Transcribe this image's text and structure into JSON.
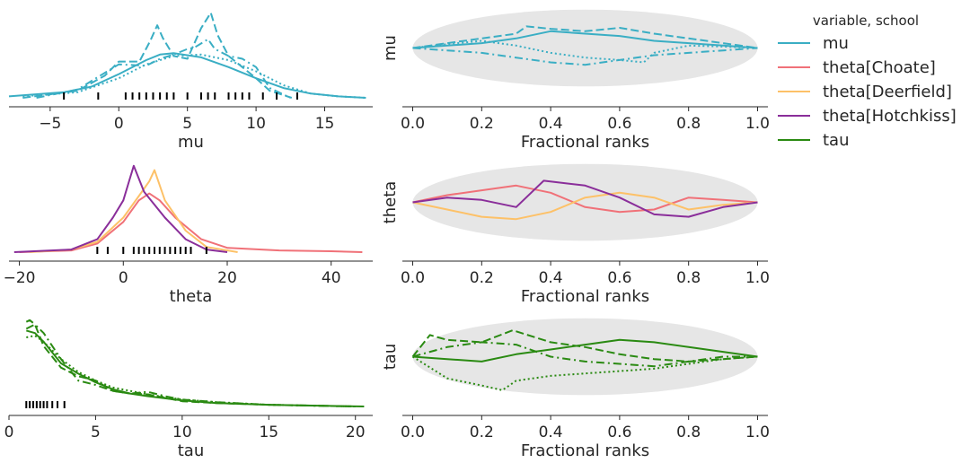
{
  "colors": {
    "mu": "#3aaec4",
    "theta_choate": "#f07178",
    "theta_deerfield": "#fdc168",
    "theta_hotchkiss": "#8a2e9a",
    "tau": "#2a8a12",
    "band": "#e6e6e6",
    "axis": "#262626"
  },
  "legend": {
    "title": "variable, school",
    "placement": "right",
    "entries": [
      {
        "label": "mu",
        "color_key": "mu"
      },
      {
        "label": "theta[Choate]",
        "color_key": "theta_choate"
      },
      {
        "label": "theta[Deerfield]",
        "color_key": "theta_deerfield"
      },
      {
        "label": "theta[Hotchkiss]",
        "color_key": "theta_hotchkiss"
      },
      {
        "label": "tau",
        "color_key": "tau"
      }
    ]
  },
  "chart_data": [
    {
      "type": "line",
      "subtype": "kde",
      "variable": "mu",
      "xlabel": "mu",
      "ylabel": "",
      "xlim": [
        -8,
        18.5
      ],
      "xticks": [
        -5,
        0,
        5,
        10,
        15
      ],
      "color_key": "mu",
      "series": [
        {
          "style": "solid",
          "x": [
            -8,
            -4,
            -2,
            0,
            2,
            3,
            4,
            6,
            8,
            10,
            12,
            14,
            16,
            18
          ],
          "y": [
            0.01,
            0.04,
            0.08,
            0.17,
            0.27,
            0.31,
            0.32,
            0.29,
            0.22,
            0.14,
            0.07,
            0.03,
            0.01,
            0.0
          ]
        },
        {
          "style": "dashed",
          "x": [
            -7,
            -3,
            -1,
            0,
            1.5,
            2.3,
            2.8,
            3.2,
            4,
            5,
            6,
            6.7,
            7.2,
            8,
            9,
            10,
            11,
            12.6
          ],
          "y": [
            0.0,
            0.05,
            0.16,
            0.26,
            0.26,
            0.41,
            0.52,
            0.43,
            0.3,
            0.28,
            0.5,
            0.61,
            0.45,
            0.3,
            0.22,
            0.14,
            0.05,
            0.0
          ]
        },
        {
          "style": "dashdot",
          "x": [
            -6,
            -3,
            -1,
            0,
            2,
            3,
            4,
            5,
            5.5,
            6.5,
            7,
            8,
            9,
            10,
            11,
            12.5
          ],
          "y": [
            0.0,
            0.06,
            0.18,
            0.24,
            0.23,
            0.28,
            0.31,
            0.35,
            0.36,
            0.42,
            0.35,
            0.3,
            0.28,
            0.22,
            0.07,
            0.0
          ]
        },
        {
          "style": "dotted",
          "x": [
            -7,
            -3,
            0,
            2,
            4,
            6,
            8,
            10,
            12,
            14,
            16,
            18
          ],
          "y": [
            0.01,
            0.04,
            0.14,
            0.24,
            0.3,
            0.31,
            0.27,
            0.19,
            0.09,
            0.03,
            0.01,
            0.0
          ]
        }
      ],
      "rug": [
        -4,
        -1.5,
        0.5,
        1,
        1.5,
        2,
        2.5,
        3,
        3.5,
        4,
        5,
        6,
        6.5,
        7,
        8,
        8.5,
        9,
        9.5,
        10.5,
        11.5,
        13
      ]
    },
    {
      "type": "line",
      "subtype": "rank",
      "ylabel": "mu",
      "xlabel": "Fractional ranks",
      "xlim": [
        -0.03,
        1.03
      ],
      "xticks": [
        0.0,
        0.2,
        0.4,
        0.6,
        0.8,
        1.0
      ],
      "color_key": "mu",
      "series": [
        {
          "style": "solid",
          "x": [
            0,
            0.1,
            0.2,
            0.3,
            0.4,
            0.5,
            0.6,
            0.7,
            0.8,
            0.9,
            1.0
          ],
          "y": [
            0.0,
            0.05,
            0.1,
            0.2,
            0.35,
            0.3,
            0.25,
            0.15,
            0.1,
            0.05,
            0.0
          ]
        },
        {
          "style": "dashed",
          "x": [
            0,
            0.1,
            0.2,
            0.3,
            0.33,
            0.4,
            0.5,
            0.6,
            0.7,
            0.8,
            0.9,
            1.0
          ],
          "y": [
            0.0,
            0.1,
            0.2,
            0.3,
            0.45,
            0.4,
            0.35,
            0.42,
            0.3,
            0.2,
            0.1,
            0.0
          ]
        },
        {
          "style": "dashdot",
          "x": [
            0,
            0.1,
            0.2,
            0.3,
            0.4,
            0.5,
            0.6,
            0.7,
            0.8,
            0.9,
            1.0
          ],
          "y": [
            0.0,
            -0.05,
            -0.1,
            -0.2,
            -0.3,
            -0.35,
            -0.25,
            -0.15,
            -0.1,
            -0.05,
            0.0
          ]
        },
        {
          "style": "dotted",
          "x": [
            0,
            0.1,
            0.2,
            0.3,
            0.4,
            0.5,
            0.6,
            0.67,
            0.7,
            0.8,
            0.9,
            1.0
          ],
          "y": [
            0.0,
            0.08,
            0.15,
            0.05,
            -0.1,
            -0.2,
            -0.25,
            -0.3,
            -0.1,
            0.05,
            0.03,
            0.0
          ]
        }
      ]
    },
    {
      "type": "line",
      "subtype": "kde",
      "variable": "theta",
      "xlabel": "theta",
      "ylabel": "",
      "xlim": [
        -22,
        48
      ],
      "xticks": [
        -20,
        0,
        20,
        40
      ],
      "series": [
        {
          "school": "theta[Choate]",
          "color_key": "theta_choate",
          "x": [
            -20,
            -10,
            -5,
            0,
            3,
            5,
            7,
            10,
            15,
            20,
            30,
            40,
            46
          ],
          "y": [
            0.0,
            0.02,
            0.1,
            0.35,
            0.6,
            0.68,
            0.6,
            0.4,
            0.15,
            0.05,
            0.02,
            0.01,
            0.0
          ]
        },
        {
          "school": "theta[Deerfield]",
          "color_key": "theta_deerfield",
          "x": [
            -18,
            -10,
            -5,
            0,
            3,
            5,
            6,
            8,
            12,
            16,
            22
          ],
          "y": [
            0.0,
            0.03,
            0.12,
            0.4,
            0.65,
            0.82,
            0.95,
            0.6,
            0.25,
            0.06,
            0.0
          ]
        },
        {
          "school": "theta[Hotchkiss]",
          "color_key": "theta_hotchkiss",
          "x": [
            -21,
            -10,
            -5,
            -2,
            0,
            1,
            2,
            4,
            6,
            8,
            12,
            16,
            20
          ],
          "y": [
            0.0,
            0.03,
            0.15,
            0.4,
            0.6,
            0.8,
            1.0,
            0.7,
            0.55,
            0.4,
            0.15,
            0.03,
            0.0
          ]
        }
      ],
      "rug": [
        -5,
        -3,
        0,
        2,
        3,
        4,
        5,
        6,
        7,
        8,
        9,
        10,
        11,
        12,
        13,
        16
      ]
    },
    {
      "type": "line",
      "subtype": "rank",
      "ylabel": "theta",
      "xlabel": "Fractional ranks",
      "xlim": [
        -0.03,
        1.03
      ],
      "xticks": [
        0.0,
        0.2,
        0.4,
        0.6,
        0.8,
        1.0
      ],
      "series": [
        {
          "school": "theta[Choate]",
          "color_key": "theta_choate",
          "x": [
            0,
            0.1,
            0.2,
            0.3,
            0.4,
            0.5,
            0.6,
            0.7,
            0.8,
            0.9,
            1.0
          ],
          "y": [
            0.0,
            0.15,
            0.25,
            0.35,
            0.2,
            -0.1,
            -0.2,
            -0.15,
            0.1,
            0.05,
            0.0
          ]
        },
        {
          "school": "theta[Deerfield]",
          "color_key": "theta_deerfield",
          "x": [
            0,
            0.1,
            0.2,
            0.3,
            0.4,
            0.5,
            0.6,
            0.7,
            0.8,
            0.9,
            1.0
          ],
          "y": [
            0.0,
            -0.15,
            -0.3,
            -0.35,
            -0.2,
            0.1,
            0.2,
            0.1,
            -0.15,
            -0.05,
            0.0
          ]
        },
        {
          "school": "theta[Hotchkiss]",
          "color_key": "theta_hotchkiss",
          "x": [
            0,
            0.1,
            0.2,
            0.3,
            0.38,
            0.5,
            0.6,
            0.7,
            0.8,
            0.9,
            1.0
          ],
          "y": [
            0.0,
            0.1,
            0.05,
            -0.1,
            0.45,
            0.35,
            0.1,
            -0.25,
            -0.3,
            -0.1,
            0.0
          ]
        }
      ]
    },
    {
      "type": "line",
      "subtype": "kde",
      "variable": "tau",
      "xlabel": "tau",
      "ylabel": "",
      "xlim": [
        0,
        21
      ],
      "xticks": [
        0,
        5,
        10,
        15,
        20
      ],
      "color_key": "tau",
      "series": [
        {
          "style": "solid",
          "x": [
            1,
            1.5,
            2,
            3,
            4,
            5,
            6,
            7,
            8,
            10,
            12,
            15,
            20.5
          ],
          "y": [
            0.88,
            0.85,
            0.75,
            0.5,
            0.38,
            0.28,
            0.2,
            0.15,
            0.12,
            0.07,
            0.04,
            0.02,
            0.0
          ]
        },
        {
          "style": "dashed",
          "x": [
            1,
            1.2,
            1.5,
            2,
            3,
            4,
            5,
            6,
            7,
            8,
            9,
            10,
            12,
            15,
            20
          ],
          "y": [
            0.98,
            1.0,
            0.95,
            0.7,
            0.45,
            0.35,
            0.3,
            0.18,
            0.15,
            0.14,
            0.1,
            0.06,
            0.04,
            0.02,
            0.0
          ]
        },
        {
          "style": "dashdot",
          "x": [
            1,
            1.5,
            2,
            3,
            4,
            5,
            6,
            7,
            8,
            9,
            10,
            12,
            15,
            20
          ],
          "y": [
            0.9,
            0.95,
            0.85,
            0.55,
            0.3,
            0.25,
            0.18,
            0.15,
            0.17,
            0.12,
            0.08,
            0.05,
            0.02,
            0.0
          ]
        },
        {
          "style": "dotted",
          "x": [
            1,
            1.5,
            2,
            3,
            4,
            5,
            6,
            8,
            10,
            12,
            15,
            20
          ],
          "y": [
            0.8,
            0.82,
            0.75,
            0.55,
            0.4,
            0.3,
            0.22,
            0.14,
            0.08,
            0.05,
            0.02,
            0.0
          ]
        }
      ],
      "rug": [
        1,
        1.2,
        1.4,
        1.6,
        1.8,
        2,
        2.2,
        2.5,
        2.8,
        3.2
      ]
    },
    {
      "type": "line",
      "subtype": "rank",
      "ylabel": "tau",
      "xlabel": "Fractional ranks",
      "xlim": [
        -0.03,
        1.03
      ],
      "xticks": [
        0.0,
        0.2,
        0.4,
        0.6,
        0.8,
        1.0
      ],
      "color_key": "tau",
      "series": [
        {
          "style": "solid",
          "x": [
            0,
            0.1,
            0.2,
            0.3,
            0.4,
            0.5,
            0.6,
            0.7,
            0.8,
            0.9,
            1.0
          ],
          "y": [
            0.0,
            -0.05,
            -0.1,
            0.05,
            0.15,
            0.25,
            0.35,
            0.3,
            0.2,
            0.1,
            0.0
          ]
        },
        {
          "style": "dashed",
          "x": [
            0,
            0.05,
            0.1,
            0.2,
            0.29,
            0.4,
            0.5,
            0.6,
            0.7,
            0.8,
            0.9,
            1.0
          ],
          "y": [
            0.0,
            0.45,
            0.35,
            0.3,
            0.55,
            0.3,
            0.2,
            0.05,
            -0.05,
            -0.1,
            -0.05,
            0.0
          ]
        },
        {
          "style": "dashdot",
          "x": [
            0,
            0.1,
            0.2,
            0.3,
            0.4,
            0.5,
            0.6,
            0.7,
            0.8,
            0.9,
            1.0
          ],
          "y": [
            0.0,
            0.2,
            0.3,
            0.25,
            0.0,
            -0.1,
            -0.15,
            -0.2,
            -0.1,
            0.0,
            0.0
          ]
        },
        {
          "style": "dotted",
          "x": [
            0,
            0.1,
            0.2,
            0.26,
            0.3,
            0.4,
            0.5,
            0.6,
            0.7,
            0.8,
            0.9,
            1.0
          ],
          "y": [
            0.0,
            -0.45,
            -0.6,
            -0.7,
            -0.5,
            -0.4,
            -0.35,
            -0.3,
            -0.25,
            -0.15,
            -0.05,
            0.0
          ]
        }
      ]
    }
  ]
}
